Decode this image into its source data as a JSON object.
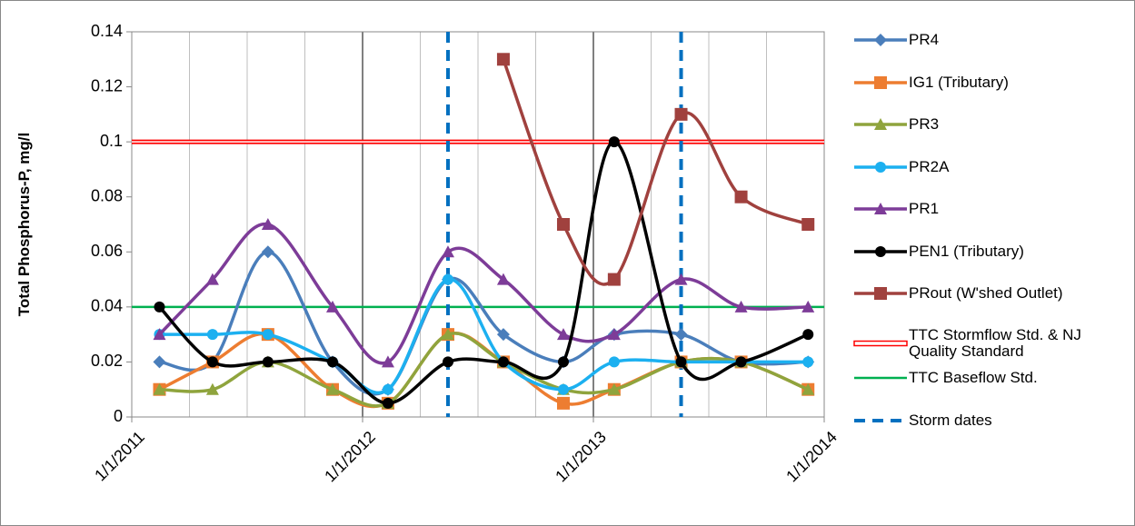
{
  "chart_data": {
    "type": "line",
    "y_label": "Total Phosphorus-P, mg/l",
    "xlim": [
      2011,
      2014
    ],
    "xticks": [
      {
        "value": 2011,
        "label": "1/1/2011"
      },
      {
        "value": 2012,
        "label": "1/1/2012"
      },
      {
        "value": 2013,
        "label": "1/1/2013"
      },
      {
        "value": 2014,
        "label": "1/1/2014"
      }
    ],
    "xminor_ticks": [
      2011.25,
      2011.5,
      2011.75,
      2012.25,
      2012.5,
      2012.75,
      2013.25,
      2013.5,
      2013.75
    ],
    "ylim": [
      0,
      0.14
    ],
    "yticks": [
      0,
      0.02,
      0.04,
      0.06,
      0.08,
      0.1,
      0.12,
      0.14
    ],
    "smooth": true,
    "x": [
      2011.12,
      2011.35,
      2011.59,
      2011.87,
      2012.11,
      2012.37,
      2012.61,
      2012.87,
      2013.09,
      2013.38,
      2013.64,
      2013.93
    ],
    "series": [
      {
        "name": "PR4",
        "color": "#4a7ebb",
        "marker": "diamond",
        "values": [
          0.02,
          0.02,
          0.06,
          0.02,
          0.01,
          0.05,
          0.03,
          0.02,
          0.03,
          0.03,
          0.02,
          0.02
        ]
      },
      {
        "name": "IG1 (Tributary)",
        "color": "#ed7d31",
        "marker": "square",
        "values": [
          0.01,
          0.02,
          0.03,
          0.01,
          0.005,
          0.03,
          0.02,
          0.005,
          0.01,
          0.02,
          0.02,
          0.01
        ]
      },
      {
        "name": "PR3",
        "color": "#8fa43d",
        "marker": "triangle",
        "values": [
          0.01,
          0.01,
          0.02,
          0.01,
          0.005,
          0.03,
          0.02,
          0.01,
          0.01,
          0.02,
          0.02,
          0.01
        ]
      },
      {
        "name": "PR2A",
        "color": "#1cb0f0",
        "marker": "circle",
        "values": [
          0.03,
          0.03,
          0.03,
          0.02,
          0.01,
          0.05,
          0.02,
          0.01,
          0.02,
          0.02,
          0.02,
          0.02
        ]
      },
      {
        "name": "PR1",
        "color": "#7d3c98",
        "marker": "triangle",
        "values": [
          0.03,
          0.05,
          0.07,
          0.04,
          0.02,
          0.06,
          0.05,
          0.03,
          0.03,
          0.05,
          0.04,
          0.04
        ]
      },
      {
        "name": "PEN1 (Tributary)",
        "color": "#000000",
        "marker": "circle",
        "values": [
          0.04,
          0.02,
          0.02,
          0.02,
          0.005,
          0.02,
          0.02,
          0.02,
          0.1,
          0.02,
          0.02,
          0.03
        ]
      },
      {
        "name": "PRout (W'shed Outlet)",
        "color": "#a0413e",
        "marker": "square",
        "values": [
          null,
          null,
          null,
          null,
          null,
          null,
          0.13,
          0.07,
          0.05,
          0.11,
          0.08,
          0.07
        ]
      }
    ],
    "reference_lines": [
      {
        "name": "TTC  Stormflow Std. & NJ Quality Standard",
        "color": "#ff0000",
        "style": "double",
        "value": 0.1
      },
      {
        "name": "TTC  Baseflow Std.",
        "color": "#00b050",
        "style": "solid",
        "value": 0.04
      }
    ],
    "vertical_lines": {
      "name": "Storm dates",
      "color": "#0070c0",
      "x": [
        2012.37,
        2013.38
      ]
    }
  }
}
